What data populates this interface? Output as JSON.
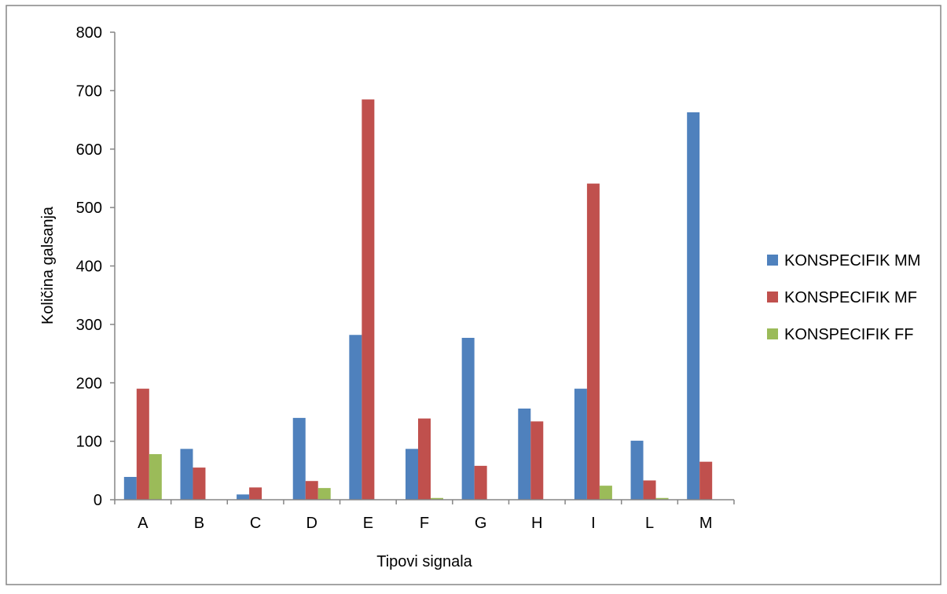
{
  "chart_data": {
    "type": "bar",
    "title": "",
    "xlabel": "Tipovi signala",
    "ylabel": "Količina galsanja",
    "ylim": [
      0,
      800
    ],
    "yticks": [
      0,
      100,
      200,
      300,
      400,
      500,
      600,
      700,
      800
    ],
    "categories": [
      "A",
      "B",
      "C",
      "D",
      "E",
      "F",
      "G",
      "H",
      "I",
      "L",
      "M"
    ],
    "series": [
      {
        "name": "KONSPECIFIK MM",
        "color": "#4F81BD",
        "values": [
          39,
          87,
          9,
          140,
          282,
          87,
          277,
          156,
          190,
          101,
          663
        ]
      },
      {
        "name": "KONSPECIFIK MF",
        "color": "#C0504D",
        "values": [
          190,
          55,
          21,
          32,
          685,
          139,
          58,
          134,
          541,
          33,
          65
        ]
      },
      {
        "name": "KONSPECIFIK FF",
        "color": "#9BBB59",
        "values": [
          78,
          0,
          0,
          20,
          0,
          3,
          0,
          0,
          24,
          3,
          0
        ]
      }
    ],
    "grid": false,
    "legend_position": "right"
  }
}
